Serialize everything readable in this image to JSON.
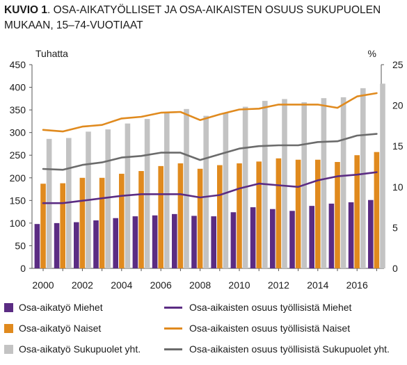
{
  "title": {
    "prefix": "KUVIO 1",
    "text": ". OSA-AIKATYÖLLISET JA OSA-AIKAISTEN OSUUS SUKUPUOLEN MUKAAN, 15–74-VUOTIAAT"
  },
  "colors": {
    "men": "#5b2c83",
    "women": "#e08a1e",
    "total_bar": "#c3c3c3",
    "total_line": "#6b6b6b"
  },
  "chart_data": {
    "type": "bar",
    "left_unit": "Tuhatta",
    "right_unit": "%",
    "x": [
      2000,
      2001,
      2002,
      2003,
      2004,
      2005,
      2006,
      2007,
      2008,
      2009,
      2010,
      2011,
      2012,
      2013,
      2014,
      2015,
      2016,
      2017
    ],
    "x_tick_labels": [
      "2000",
      "2002",
      "2004",
      "2006",
      "2008",
      "2010",
      "2012",
      "2014",
      "2016"
    ],
    "y_left_ticks": [
      "0",
      "50",
      "100",
      "150",
      "200",
      "250",
      "300",
      "350",
      "400",
      "450"
    ],
    "y_right_ticks": [
      "0",
      "5",
      "10",
      "15",
      "20",
      "25"
    ],
    "ylim_left": [
      0,
      450
    ],
    "ylim_right": [
      0,
      25
    ],
    "grid": false,
    "bar_series": [
      {
        "name": "Osa-aikatyö Miehet",
        "color": "#5b2c83",
        "values": [
          98,
          100,
          102,
          106,
          111,
          115,
          117,
          120,
          116,
          115,
          124,
          135,
          131,
          127,
          138,
          143,
          146,
          151
        ]
      },
      {
        "name": "Osa-aikatyö Naiset",
        "color": "#e08a1e",
        "values": [
          187,
          188,
          200,
          200,
          209,
          215,
          226,
          232,
          220,
          228,
          232,
          236,
          243,
          240,
          240,
          235,
          250,
          257
        ]
      },
      {
        "name": "Osa-aikatyö Sukupuolet yht.",
        "color": "#c3c3c3",
        "values": [
          286,
          288,
          302,
          307,
          320,
          330,
          343,
          352,
          337,
          343,
          357,
          370,
          374,
          367,
          376,
          378,
          398,
          408
        ]
      }
    ],
    "line_series": [
      {
        "name": "Osa-aikaisten osuus työllisistä Miehet",
        "color": "#5b2c83",
        "values": [
          8.0,
          8.0,
          8.3,
          8.6,
          8.9,
          9.1,
          9.1,
          9.1,
          8.7,
          9.0,
          9.8,
          10.4,
          10.2,
          10.0,
          10.8,
          11.3,
          11.5,
          11.8
        ]
      },
      {
        "name": "Osa-aikaisten osuus työllisistä Naiset",
        "color": "#e08a1e",
        "values": [
          17.0,
          16.8,
          17.4,
          17.6,
          18.4,
          18.6,
          19.1,
          19.2,
          18.2,
          18.9,
          19.5,
          19.6,
          20.1,
          20.1,
          20.1,
          19.7,
          21.1,
          21.5
        ]
      },
      {
        "name": "Osa-aikaisten osuus työllisistä Sukupuolet yht.",
        "color": "#6b6b6b",
        "values": [
          12.2,
          12.1,
          12.7,
          13.0,
          13.6,
          13.8,
          14.2,
          14.2,
          13.3,
          14.0,
          14.7,
          15.0,
          15.1,
          15.1,
          15.5,
          15.6,
          16.3,
          16.5
        ]
      }
    ],
    "legend_position": "bottom"
  },
  "legend": {
    "left": [
      "Osa-aikatyö Miehet",
      "Osa-aikatyö Naiset",
      "Osa-aikatyö Sukupuolet yht."
    ],
    "right": [
      "Osa-aikaisten osuus työllisistä Miehet",
      "Osa-aikaisten osuus työllisistä Naiset",
      "Osa-aikaisten osuus työllisistä Sukupuolet yht."
    ]
  }
}
